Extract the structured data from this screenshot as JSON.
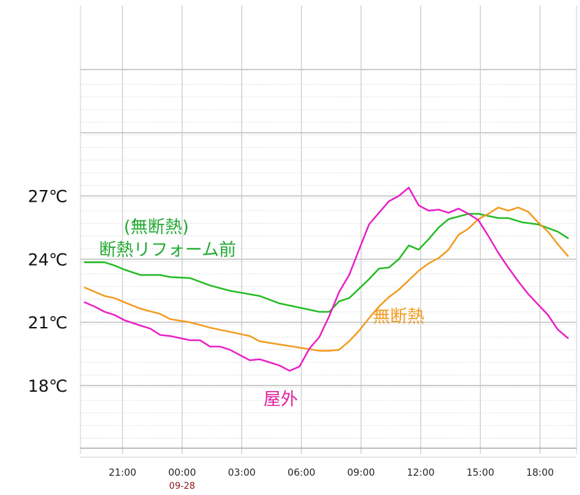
{
  "chart_data": {
    "type": "line",
    "title": "",
    "xlabel": "",
    "ylabel": "",
    "grid": true,
    "x_unit": "hours",
    "xlim": [
      -1.9,
      22.5
    ],
    "ylim": [
      15.5,
      32.8
    ],
    "x_ticks": [
      {
        "v": 0,
        "label": "21:00"
      },
      {
        "v": 3,
        "label": "00:00",
        "sub": "09-28"
      },
      {
        "v": 6,
        "label": "03:00"
      },
      {
        "v": 9,
        "label": "06:00"
      },
      {
        "v": 12,
        "label": "09:00"
      },
      {
        "v": 15,
        "label": "12:00"
      },
      {
        "v": 18,
        "label": "15:00"
      },
      {
        "v": 21,
        "label": "18:00"
      }
    ],
    "y_ticks": [
      {
        "v": 18,
        "label": "18℃"
      },
      {
        "v": 21,
        "label": "21℃"
      },
      {
        "v": 24,
        "label": "24℃"
      },
      {
        "v": 27,
        "label": "27℃"
      }
    ],
    "y_grid_major": [
      18,
      21,
      24,
      27,
      30,
      33
    ],
    "series": [
      {
        "name": "断熱リフォーム前\n(無断熱)",
        "color": "#22bb22",
        "x": [
          -1.9,
          -0.9,
          -0.4,
          0.1,
          0.9,
          1.9,
          2.4,
          3.4,
          4.4,
          5.4,
          6.9,
          7.9,
          8.9,
          9.9,
          10.4,
          10.9,
          11.4,
          11.9,
          12.4,
          12.9,
          13.4,
          13.9,
          14.4,
          14.9,
          15.4,
          15.9,
          16.4,
          17.4,
          17.9,
          18.4,
          18.9,
          19.4,
          20.1,
          20.9,
          21.9,
          22.4
        ],
        "y": [
          23.85,
          23.85,
          23.7,
          23.5,
          23.25,
          23.25,
          23.15,
          23.1,
          22.75,
          22.5,
          22.25,
          21.9,
          21.7,
          21.5,
          21.5,
          22.0,
          22.15,
          22.6,
          23.05,
          23.55,
          23.6,
          24.0,
          24.65,
          24.45,
          24.95,
          25.5,
          25.9,
          26.15,
          26.15,
          26.05,
          25.95,
          25.95,
          25.75,
          25.65,
          25.3,
          25.0
        ]
      },
      {
        "name": "無断熱",
        "color": "#f39a1e",
        "x": [
          -1.9,
          -1.4,
          -0.9,
          -0.4,
          0.1,
          0.9,
          1.9,
          2.4,
          3.4,
          4.4,
          5.4,
          6.4,
          6.9,
          7.9,
          8.9,
          9.9,
          10.4,
          10.9,
          11.4,
          11.9,
          12.4,
          12.9,
          13.4,
          13.9,
          14.4,
          14.9,
          15.4,
          15.9,
          16.4,
          16.9,
          17.4,
          17.9,
          18.4,
          18.9,
          19.4,
          19.9,
          20.4,
          20.9,
          21.4,
          21.9,
          22.4
        ],
        "y": [
          22.65,
          22.45,
          22.25,
          22.15,
          21.95,
          21.65,
          21.4,
          21.15,
          21.0,
          20.75,
          20.55,
          20.35,
          20.1,
          19.95,
          19.8,
          19.65,
          19.65,
          19.7,
          20.1,
          20.6,
          21.2,
          21.75,
          22.2,
          22.55,
          23.0,
          23.45,
          23.8,
          24.05,
          24.45,
          25.15,
          25.45,
          25.9,
          26.15,
          26.45,
          26.3,
          26.45,
          26.25,
          25.75,
          25.3,
          24.7,
          24.15
        ]
      },
      {
        "name": "屋外",
        "color": "#e91ec8",
        "x": [
          -1.9,
          -1.4,
          -0.9,
          -0.4,
          0.1,
          0.9,
          1.4,
          1.9,
          2.4,
          3.4,
          3.9,
          4.4,
          4.9,
          5.4,
          6.4,
          6.9,
          7.9,
          8.4,
          8.9,
          9.4,
          9.9,
          10.4,
          10.9,
          11.4,
          11.9,
          12.4,
          12.9,
          13.4,
          13.9,
          14.4,
          14.9,
          15.4,
          15.9,
          16.4,
          16.9,
          17.4,
          17.9,
          18.4,
          18.9,
          19.4,
          19.9,
          20.4,
          20.9,
          21.4,
          21.9,
          22.4
        ],
        "y": [
          21.95,
          21.75,
          21.5,
          21.35,
          21.1,
          20.85,
          20.7,
          20.4,
          20.35,
          20.15,
          20.15,
          19.85,
          19.85,
          19.7,
          19.2,
          19.25,
          18.95,
          18.7,
          18.9,
          19.75,
          20.3,
          21.3,
          22.45,
          23.25,
          24.45,
          25.65,
          26.2,
          26.75,
          27.0,
          27.4,
          26.55,
          26.3,
          26.35,
          26.2,
          26.4,
          26.15,
          25.85,
          25.1,
          24.3,
          23.6,
          22.95,
          22.35,
          21.85,
          21.35,
          20.65,
          20.25
        ]
      }
    ]
  },
  "annotations": {
    "green_line1": "(無断熱)",
    "green_line2": "断熱リフォーム前",
    "orange": "無断熱",
    "magenta": "屋外"
  }
}
